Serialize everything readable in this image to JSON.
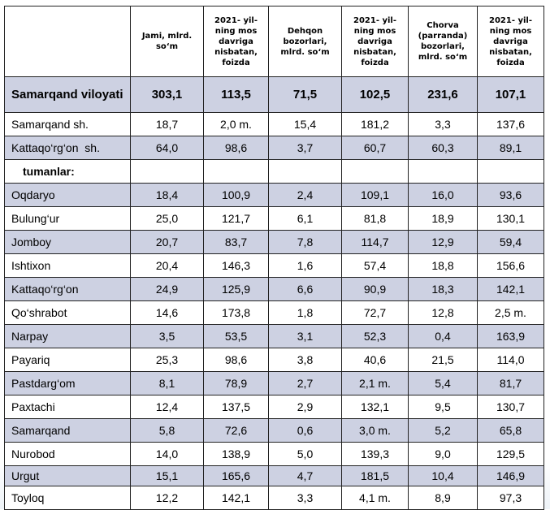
{
  "table": {
    "headers": [
      "",
      "Jami, mlrd. so‘m",
      "2021- yil-ning mos davriga nisbatan, foizda",
      "Dehqon bozorlari, mlrd. so‘m",
      "2021- yil-ning mos davriga nisbatan, foizda",
      "Chorva (parranda) bozorlari, mlrd. so‘m",
      "2021- yil-ning mos davriga nisbatan, foizda"
    ],
    "total": {
      "name": "Samarqand viloyati",
      "values": [
        "303,1",
        "113,5",
        "71,5",
        "102,5",
        "231,6",
        "107,1"
      ]
    },
    "cities": [
      {
        "name": "Samarqand sh.",
        "values": [
          "18,7",
          "2,0 m.",
          "15,4",
          "181,2",
          "3,3",
          "137,6"
        ]
      },
      {
        "name": "Kattaqo‘rg‘on  sh.",
        "values": [
          "64,0",
          "98,6",
          "3,7",
          "60,7",
          "60,3",
          "89,1"
        ]
      }
    ],
    "section_label": "tumanlar:",
    "districts": [
      {
        "name": "Oqdaryo",
        "values": [
          "18,4",
          "100,9",
          "2,4",
          "109,1",
          "16,0",
          "93,6"
        ]
      },
      {
        "name": "Bulung‘ur",
        "values": [
          "25,0",
          "121,7",
          "6,1",
          "81,8",
          "18,9",
          "130,1"
        ]
      },
      {
        "name": "Jomboy",
        "values": [
          "20,7",
          "83,7",
          "7,8",
          "114,7",
          "12,9",
          "59,4"
        ]
      },
      {
        "name": "Ishtixon",
        "values": [
          "20,4",
          "146,3",
          "1,6",
          "57,4",
          "18,8",
          "156,6"
        ]
      },
      {
        "name": "Kattaqo‘rg‘on",
        "values": [
          "24,9",
          "125,9",
          "6,6",
          "90,9",
          "18,3",
          "142,1"
        ]
      },
      {
        "name": "Qo‘shrabot",
        "values": [
          "14,6",
          "173,8",
          "1,8",
          "72,7",
          "12,8",
          "2,5 m."
        ]
      },
      {
        "name": "Narpay",
        "values": [
          "3,5",
          "53,5",
          "3,1",
          "52,3",
          "0,4",
          "163,9"
        ]
      },
      {
        "name": "Payariq",
        "values": [
          "25,3",
          "98,6",
          "3,8",
          "40,6",
          "21,5",
          "114,0"
        ]
      },
      {
        "name": "Pastdarg‘om",
        "values": [
          "8,1",
          "78,9",
          "2,7",
          "2,1 m.",
          "5,4",
          "81,7"
        ]
      },
      {
        "name": "Paxtachi",
        "values": [
          "12,4",
          "137,5",
          "2,9",
          "132,1",
          "9,5",
          "130,7"
        ]
      },
      {
        "name": "Samarqand",
        "values": [
          "5,8",
          "72,6",
          "0,6",
          "3,0 m.",
          "5,2",
          "65,8"
        ]
      },
      {
        "name": "Nurobod",
        "values": [
          "14,0",
          "138,9",
          "5,0",
          "139,3",
          "9,0",
          "129,5"
        ]
      },
      {
        "name": "Urgut",
        "values": [
          "15,1",
          "165,6",
          "4,7",
          "181,5",
          "10,4",
          "146,9"
        ]
      },
      {
        "name": "Toyloq",
        "values": [
          "12,2",
          "142,1",
          "3,3",
          "4,1 m.",
          "8,9",
          "97,3"
        ]
      }
    ]
  }
}
